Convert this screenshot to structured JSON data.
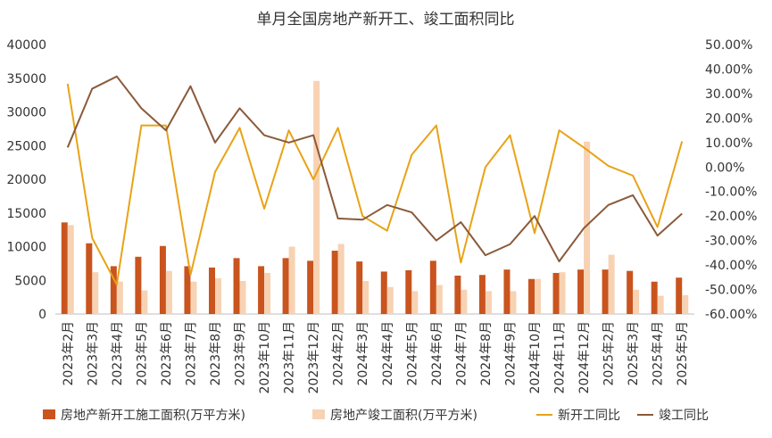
{
  "chart_data": {
    "type": "bar",
    "title": "单月全国房地产新开工、竣工面积同比",
    "categories": [
      "2023年2月",
      "2023年3月",
      "2023年4月",
      "2023年5月",
      "2023年6月",
      "2023年7月",
      "2023年8月",
      "2023年9月",
      "2023年10月",
      "2023年11月",
      "2023年12月",
      "2024年2月",
      "2024年3月",
      "2024年4月",
      "2024年5月",
      "2024年6月",
      "2024年7月",
      "2024年8月",
      "2024年9月",
      "2024年10月",
      "2024年11月",
      "2024年12月",
      "2025年2月",
      "2025年3月",
      "2025年4月",
      "2025年5月"
    ],
    "y_left": {
      "min": 0,
      "max": 40000,
      "ticks": [
        "0",
        "5000",
        "10000",
        "15000",
        "20000",
        "25000",
        "30000",
        "35000",
        "40000"
      ]
    },
    "y_right": {
      "min": -60,
      "max": 50,
      "ticks": [
        "-60.00%",
        "-50.00%",
        "-40.00%",
        "-30.00%",
        "-20.00%",
        "-10.00%",
        "0.00%",
        "10.00%",
        "20.00%",
        "30.00%",
        "40.00%",
        "50.00%"
      ]
    },
    "series": [
      {
        "name": "房地产新开工施工面积(万平方米)",
        "kind": "bar",
        "axis": "left",
        "color": "#c9541e",
        "values": [
          13600,
          10500,
          7100,
          8500,
          10100,
          7100,
          6900,
          8300,
          7100,
          8300,
          7900,
          9400,
          7800,
          6300,
          6500,
          7900,
          5700,
          5800,
          6600,
          5200,
          6100,
          6600,
          6600,
          6400,
          4800,
          5400
        ]
      },
      {
        "name": "房地产竣工面积(万平方米)",
        "kind": "bar",
        "axis": "left",
        "color": "#f7d2b3",
        "values": [
          13200,
          6200,
          4800,
          3500,
          6400,
          4800,
          5300,
          4900,
          6100,
          10000,
          34600,
          10400,
          4900,
          4000,
          3400,
          4300,
          3600,
          3400,
          3400,
          5200,
          6200,
          25600,
          8800,
          3600,
          2700,
          2800
        ]
      },
      {
        "name": "新开工同比",
        "kind": "line",
        "axis": "right",
        "color": "#e8a317",
        "values": [
          34,
          -29,
          -48,
          17,
          17,
          -44,
          -2,
          16,
          -17,
          15,
          -5,
          16,
          -20,
          -26,
          5,
          17,
          -39,
          0,
          13,
          -27,
          15,
          8,
          0.5,
          -3.5,
          -24.5,
          10.5
        ]
      },
      {
        "name": "竣工同比",
        "kind": "line",
        "axis": "right",
        "color": "#8a5a3b",
        "values": [
          8,
          32,
          37,
          24,
          15,
          33,
          10,
          24,
          13,
          10,
          13,
          -21,
          -21.5,
          -15.5,
          -18.5,
          -30,
          -22.5,
          -36,
          -31.5,
          -20,
          -38.5,
          -25,
          -15.5,
          -11.5,
          -28,
          -19
        ]
      }
    ],
    "legend_position": "bottom",
    "grid": false
  }
}
